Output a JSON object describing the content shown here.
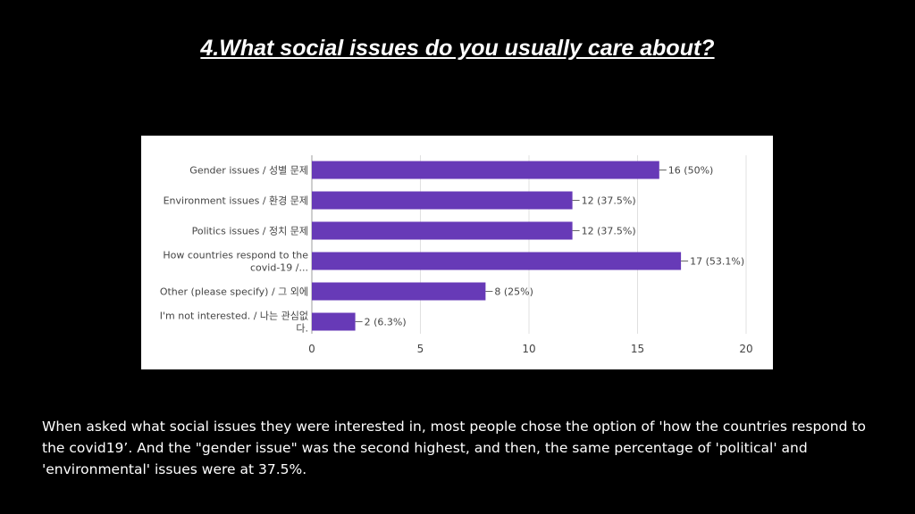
{
  "slide": {
    "title": "4.What social issues do you usually care about?",
    "summary": "When asked what social issues they were interested in, most people chose the option of 'how the countries respond to the covid19’. And the \"gender issue\" was the second highest, and then, the same percentage of 'political' and 'environmental' issues were at 37.5%."
  },
  "chart_data": {
    "type": "bar",
    "orientation": "horizontal",
    "bar_color": "#673ab7",
    "categories": [
      [
        "Gender issues / 성별 문제"
      ],
      [
        "Environment issues / 환경 문제"
      ],
      [
        "Politics issues / 정치 문제"
      ],
      [
        "How countries respond to the",
        "covid-19 /..."
      ],
      [
        "Other (please specify) / 그 외에"
      ],
      [
        "I'm not interested. / 나는 관심없",
        "다."
      ]
    ],
    "values": [
      16,
      12,
      12,
      17,
      8,
      2
    ],
    "data_labels": [
      "16 (50%)",
      "12 (37.5%)",
      "12 (37.5%)",
      "17 (53.1%)",
      "8 (25%)",
      "2 (6.3%)"
    ],
    "xlim": [
      0,
      20
    ],
    "xticks": [
      "0",
      "5",
      "10",
      "15",
      "20"
    ],
    "grid": true
  }
}
